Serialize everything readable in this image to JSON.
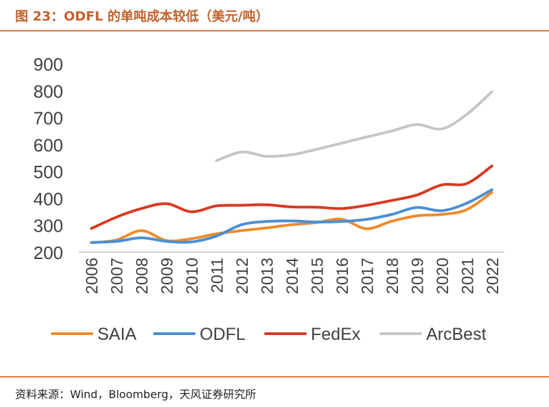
{
  "title": "图 23：ODFL 的单吨成本较低（美元/吨）",
  "source": "资料来源：Wind，Bloomberg，天风证券研究所",
  "chart_data": {
    "type": "line",
    "x": [
      "2006",
      "2007",
      "2008",
      "2009",
      "2010",
      "2011",
      "2012",
      "2013",
      "2014",
      "2015",
      "2016",
      "2017",
      "2018",
      "2019",
      "2020",
      "2021",
      "2022"
    ],
    "ylim": [
      200,
      900
    ],
    "yticks": [
      200,
      300,
      400,
      500,
      600,
      700,
      800,
      900
    ],
    "grid": false,
    "legend_position": "bottom",
    "series": [
      {
        "name": "SAIA",
        "color": "#f08a2c",
        "values": [
          235,
          245,
          280,
          243,
          250,
          268,
          280,
          290,
          302,
          310,
          322,
          287,
          315,
          335,
          340,
          358,
          422
        ]
      },
      {
        "name": "ODFL",
        "color": "#4a8fd4",
        "values": [
          236,
          240,
          253,
          240,
          238,
          260,
          302,
          314,
          316,
          312,
          314,
          322,
          340,
          366,
          354,
          382,
          432
        ]
      },
      {
        "name": "FedEx",
        "color": "#d93a21",
        "values": [
          288,
          330,
          362,
          380,
          350,
          372,
          374,
          376,
          368,
          367,
          362,
          374,
          392,
          412,
          450,
          455,
          520
        ]
      },
      {
        "name": "ArcBest",
        "color": "#c6c6c6",
        "values": [
          null,
          null,
          null,
          null,
          null,
          540,
          572,
          556,
          562,
          582,
          605,
          628,
          650,
          674,
          658,
          712,
          796
        ]
      }
    ]
  }
}
